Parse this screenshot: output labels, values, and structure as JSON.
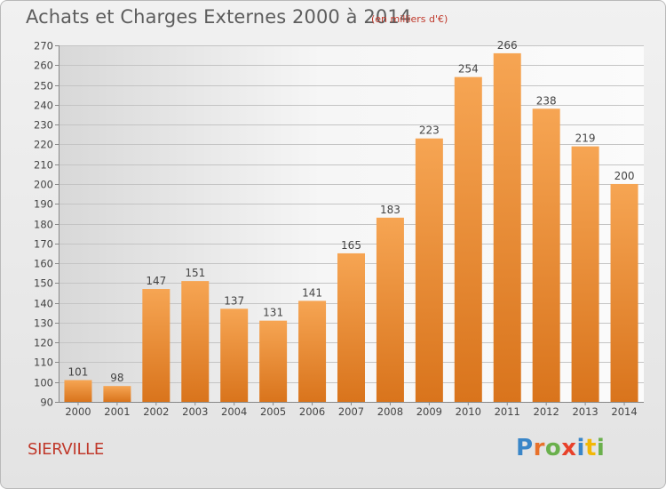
{
  "header": {
    "title": "Achats et Charges Externes 2000 à 2014",
    "unit_note": "(en milliers d'€)"
  },
  "footer": {
    "city": "SIERVILLE",
    "logo_text": "Proxiti"
  },
  "colors": {
    "bar_top": "#f6a553",
    "bar_bottom": "#d9741c",
    "city": "#c0392b"
  },
  "chart_data": {
    "type": "bar",
    "categories": [
      "2000",
      "2001",
      "2002",
      "2003",
      "2004",
      "2005",
      "2006",
      "2007",
      "2008",
      "2009",
      "2010",
      "2011",
      "2012",
      "2013",
      "2014"
    ],
    "values": [
      101,
      98,
      147,
      151,
      137,
      131,
      141,
      165,
      183,
      223,
      254,
      266,
      238,
      219,
      200
    ],
    "ylim": [
      90,
      270
    ],
    "yticks": [
      90,
      100,
      110,
      120,
      130,
      140,
      150,
      160,
      170,
      180,
      190,
      200,
      210,
      220,
      230,
      240,
      250,
      260,
      270
    ],
    "grid": true,
    "title": "Achats et Charges Externes 2000 à 2014",
    "xlabel": "",
    "ylabel": ""
  }
}
